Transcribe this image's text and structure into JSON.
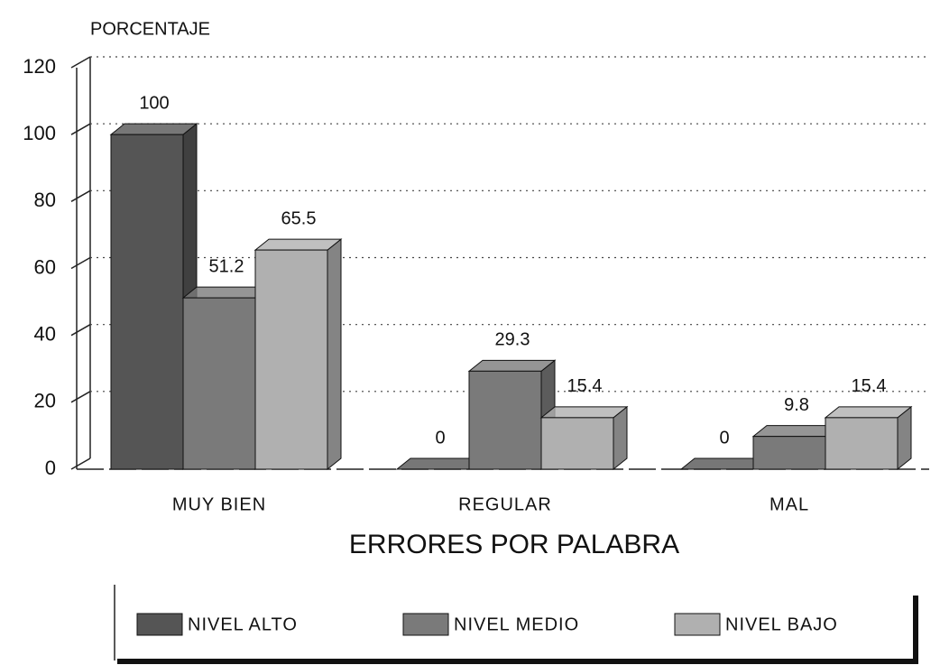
{
  "chart_data": {
    "type": "bar3d",
    "y_label": "PORCENTAJE",
    "x_label": "ERRORES POR PALABRA",
    "categories": [
      "MUY BIEN",
      "REGULAR",
      "MAL"
    ],
    "series": [
      {
        "name": "NIVEL ALTO",
        "color": "#555555",
        "values": [
          100,
          0,
          0
        ]
      },
      {
        "name": "NIVEL MEDIO",
        "color": "#7a7a7a",
        "values": [
          51.2,
          29.3,
          9.8
        ]
      },
      {
        "name": "NIVEL BAJO",
        "color": "#b0b0b0",
        "values": [
          65.5,
          15.4,
          15.4
        ]
      }
    ],
    "ylim": [
      0,
      120
    ],
    "yticks": [
      0,
      20,
      40,
      60,
      80,
      100,
      120
    ],
    "grid": true
  }
}
